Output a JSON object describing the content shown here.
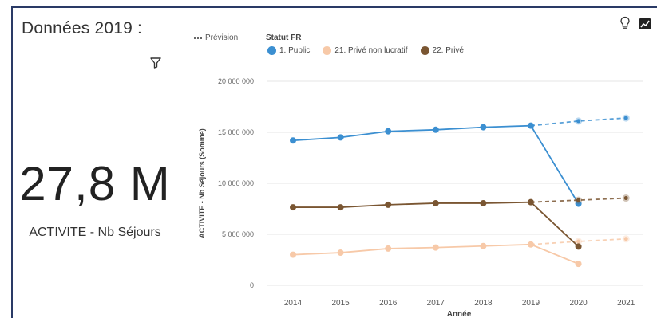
{
  "header": {
    "title": "Données 2019 :"
  },
  "kpi": {
    "value": "27,8 M",
    "label": "ACTIVITE - Nb Séjours"
  },
  "icons": {
    "filter": "filter-icon",
    "insight": "lightbulb-icon",
    "chart_type": "line-chart-icon"
  },
  "legend": {
    "forecast_label": "Prévision",
    "group_title": "Statut FR",
    "items": [
      {
        "label": "1. Public",
        "color": "#3b8fd1"
      },
      {
        "label": "21. Privé non lucratif",
        "color": "#f7c9a8"
      },
      {
        "label": "22. Privé",
        "color": "#7a5632"
      }
    ]
  },
  "chart_data": {
    "type": "line",
    "xlabel": "Année",
    "ylabel": "ACTIVITE - Nb Séjours (Somme)",
    "x": [
      "2014",
      "2015",
      "2016",
      "2017",
      "2018",
      "2019",
      "2020",
      "2021"
    ],
    "ylim": [
      0,
      20000000
    ],
    "y_ticks": [
      "0",
      "5 000 000",
      "10 000 000",
      "15 000 000",
      "20 000 000"
    ],
    "grid": true,
    "series": [
      {
        "name": "1. Public",
        "color": "#3b8fd1",
        "values": [
          14200000,
          14500000,
          15100000,
          15250000,
          15500000,
          15650000,
          8000000,
          null
        ],
        "forecast": {
          "from": "2019",
          "values": [
            15650000,
            16100000,
            16400000
          ]
        }
      },
      {
        "name": "21. Privé non lucratif",
        "color": "#f7c9a8",
        "values": [
          3000000,
          3200000,
          3600000,
          3700000,
          3850000,
          4000000,
          2100000,
          null
        ],
        "forecast": {
          "from": "2019",
          "values": [
            4000000,
            4300000,
            4550000
          ]
        }
      },
      {
        "name": "22. Privé",
        "color": "#7a5632",
        "values": [
          7650000,
          7650000,
          7900000,
          8050000,
          8050000,
          8150000,
          3800000,
          null
        ],
        "forecast": {
          "from": "2019",
          "values": [
            8150000,
            8350000,
            8550000
          ]
        }
      }
    ]
  }
}
